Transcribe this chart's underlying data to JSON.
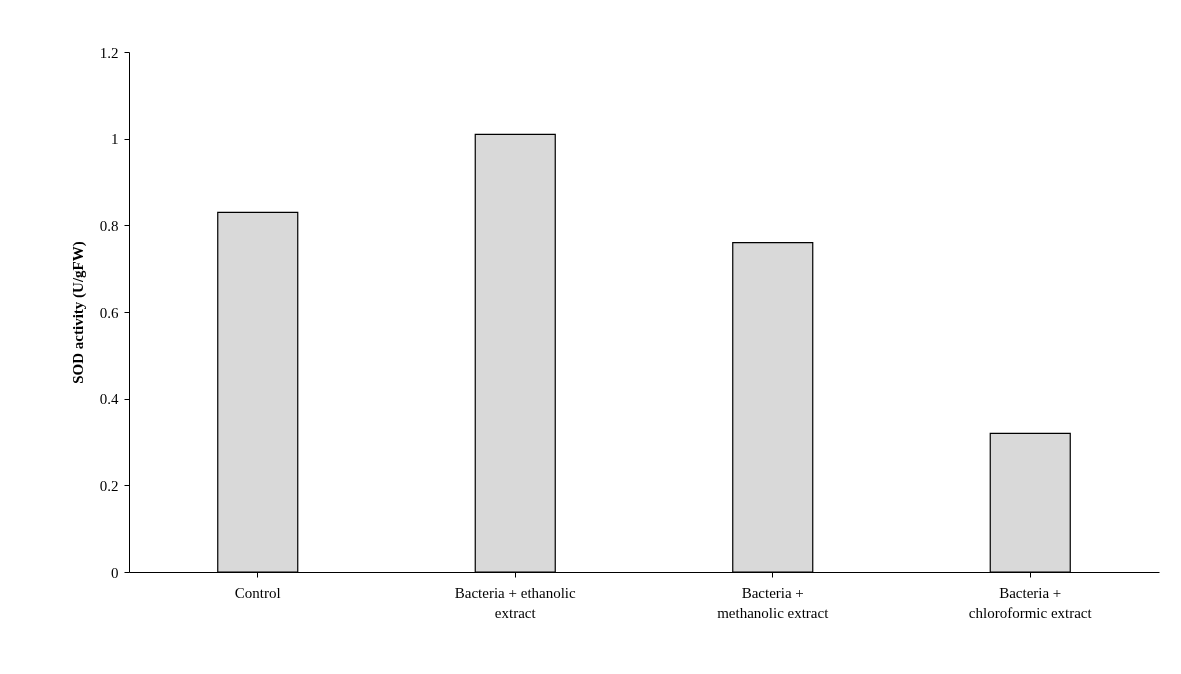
{
  "chart_data": {
    "type": "bar",
    "ylabel": "SOD activity (U/gFW)",
    "categories": [
      "Control",
      "Bacteria + ethanolic\nextract",
      "Bacteria +\nmethanolic extract",
      "Bacteria +\nchloroformic extract"
    ],
    "values": [
      0.83,
      1.01,
      0.76,
      0.32
    ],
    "color": "#d9d9d9",
    "ylim": [
      0,
      1.2
    ],
    "yticks": [
      0,
      0.2,
      0.4,
      0.6,
      0.8,
      1,
      1.2
    ],
    "grid": false
  }
}
